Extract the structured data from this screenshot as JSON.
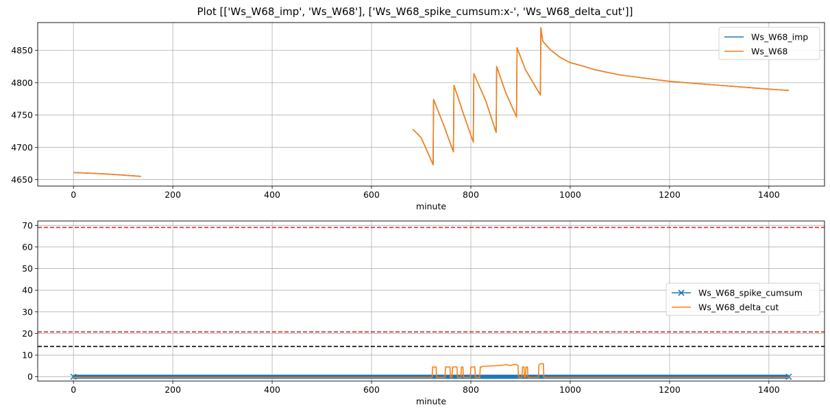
{
  "title": "Plot [['Ws_W68_imp', 'Ws_W68'], ['Ws_W68_spike_cumsum:x-', 'Ws_W68_delta_cut']]",
  "chart_data": [
    {
      "type": "line",
      "xlabel": "minute",
      "ylabel": "",
      "xlim": [
        -72,
        1512
      ],
      "ylim": [
        4640,
        4893
      ],
      "xticks": [
        0,
        200,
        400,
        600,
        800,
        1000,
        1200,
        1400
      ],
      "yticks": [
        4650,
        4700,
        4750,
        4800,
        4850
      ],
      "grid": true,
      "legend": "top-right",
      "series": [
        {
          "name": "Ws_W68_imp",
          "color": "#1f77b4",
          "segments": [
            [
              [
                0,
                4661
              ],
              [
                30,
                4660
              ],
              [
                60,
                4659
              ],
              [
                100,
                4657
              ],
              [
                136,
                4655
              ]
            ],
            [
              [
                683,
                4728
              ],
              [
                700,
                4715
              ],
              [
                724,
                4673
              ],
              [
                725,
                4774
              ],
              [
                745,
                4735
              ],
              [
                765,
                4693
              ],
              [
                766,
                4796
              ],
              [
                785,
                4752
              ],
              [
                805,
                4708
              ],
              [
                806,
                4814
              ],
              [
                830,
                4772
              ],
              [
                851,
                4723
              ],
              [
                852,
                4825
              ],
              [
                870,
                4785
              ],
              [
                892,
                4747
              ],
              [
                893,
                4854
              ],
              [
                910,
                4820
              ],
              [
                940,
                4781
              ],
              [
                941,
                4885
              ],
              [
                945,
                4864
              ],
              [
                960,
                4851
              ],
              [
                980,
                4839
              ],
              [
                1000,
                4831
              ],
              [
                1020,
                4827
              ],
              [
                1050,
                4820
              ],
              [
                1100,
                4812
              ],
              [
                1150,
                4807
              ],
              [
                1200,
                4802
              ],
              [
                1250,
                4799
              ],
              [
                1300,
                4796
              ],
              [
                1350,
                4793
              ],
              [
                1400,
                4790
              ],
              [
                1440,
                4788
              ]
            ]
          ]
        },
        {
          "name": "Ws_W68",
          "color": "#ff7f0e",
          "segments": [
            [
              [
                0,
                4661
              ],
              [
                30,
                4660
              ],
              [
                60,
                4659
              ],
              [
                100,
                4657
              ],
              [
                136,
                4655
              ]
            ],
            [
              [
                683,
                4728
              ],
              [
                700,
                4715
              ],
              [
                724,
                4673
              ],
              [
                725,
                4774
              ],
              [
                745,
                4735
              ],
              [
                765,
                4693
              ],
              [
                766,
                4796
              ],
              [
                785,
                4752
              ],
              [
                805,
                4708
              ],
              [
                806,
                4814
              ],
              [
                830,
                4772
              ],
              [
                851,
                4723
              ],
              [
                852,
                4825
              ],
              [
                870,
                4785
              ],
              [
                892,
                4747
              ],
              [
                893,
                4854
              ],
              [
                910,
                4820
              ],
              [
                940,
                4781
              ],
              [
                941,
                4885
              ],
              [
                945,
                4864
              ],
              [
                960,
                4851
              ],
              [
                980,
                4839
              ],
              [
                1000,
                4831
              ],
              [
                1020,
                4827
              ],
              [
                1050,
                4820
              ],
              [
                1100,
                4812
              ],
              [
                1150,
                4807
              ],
              [
                1200,
                4802
              ],
              [
                1250,
                4799
              ],
              [
                1300,
                4796
              ],
              [
                1350,
                4793
              ],
              [
                1400,
                4790
              ],
              [
                1440,
                4788
              ]
            ]
          ]
        }
      ]
    },
    {
      "type": "line",
      "xlabel": "minute",
      "ylabel": "",
      "xlim": [
        -72,
        1512
      ],
      "ylim": [
        -2,
        72
      ],
      "xticks": [
        0,
        200,
        400,
        600,
        800,
        1000,
        1200,
        1400
      ],
      "yticks": [
        0,
        10,
        20,
        30,
        40,
        50,
        60,
        70
      ],
      "grid": true,
      "legend": "center-right",
      "hlines": [
        {
          "y": 69,
          "color": "#d62728"
        },
        {
          "y": 20.7,
          "color": "#d62728"
        },
        {
          "y": 14,
          "color": "#000000"
        }
      ],
      "series": [
        {
          "name": "Ws_W68_spike_cumsum",
          "color": "#1f77b4",
          "marker": "x",
          "x_range": [
            0,
            1440
          ],
          "values": [
            0
          ]
        },
        {
          "name": "Ws_W68_delta_cut",
          "color": "#ff7f0e",
          "points": [
            [
              0,
              -0.3
            ],
            [
              722,
              -0.3
            ],
            [
              723,
              4.5
            ],
            [
              730,
              4.5
            ],
            [
              731,
              -0.3
            ],
            [
              748,
              -0.3
            ],
            [
              749,
              4.5
            ],
            [
              758,
              4.5
            ],
            [
              759,
              -0.3
            ],
            [
              762,
              -0.3
            ],
            [
              763,
              4.5
            ],
            [
              772,
              4.5
            ],
            [
              773,
              -0.3
            ],
            [
              780,
              -0.3
            ],
            [
              781,
              4.5
            ],
            [
              784,
              4.5
            ],
            [
              785,
              -0.3
            ],
            [
              799,
              -0.3
            ],
            [
              800,
              4.5
            ],
            [
              808,
              4.5
            ],
            [
              809,
              -0.3
            ],
            [
              818,
              -0.3
            ],
            [
              819,
              4.5
            ],
            [
              822,
              4.5
            ],
            [
              823,
              4.8
            ],
            [
              840,
              5
            ],
            [
              860,
              5.2
            ],
            [
              870,
              5.6
            ],
            [
              880,
              5.2
            ],
            [
              890,
              5.8
            ],
            [
              895,
              5.2
            ],
            [
              896,
              -0.3
            ],
            [
              903,
              -0.3
            ],
            [
              904,
              4.5
            ],
            [
              907,
              4.5
            ],
            [
              908,
              -0.3
            ],
            [
              910,
              -0.3
            ],
            [
              911,
              4.5
            ],
            [
              914,
              4.5
            ],
            [
              915,
              -0.3
            ],
            [
              936,
              -0.3
            ],
            [
              937,
              5.5
            ],
            [
              940,
              6
            ],
            [
              946,
              6
            ],
            [
              947,
              -0.3
            ],
            [
              1440,
              -0.3
            ]
          ]
        }
      ]
    }
  ]
}
